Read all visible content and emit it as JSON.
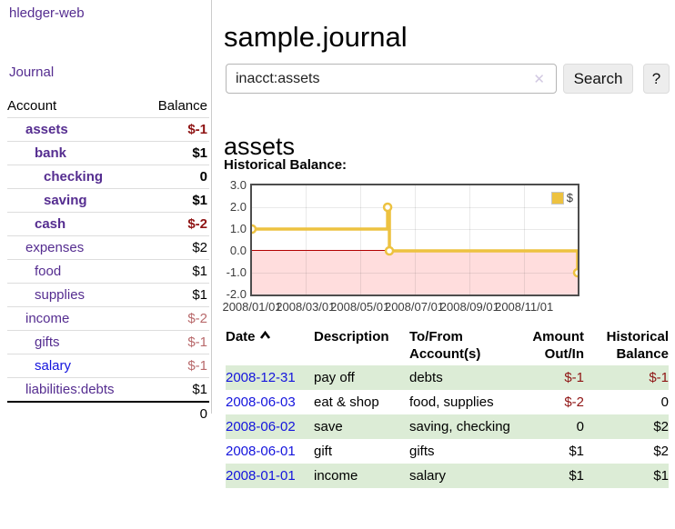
{
  "colors": {
    "link_purple": "#552d90",
    "link_blue": "#1414dd",
    "negative": "#8f1414",
    "negative_soft": "#b8696b",
    "row_highlight": "#dcecd6",
    "chart_line": "#edc240",
    "chart_negative_bg": "#ffdddd",
    "chart_zero_line": "#b30000"
  },
  "sidebar": {
    "app_title": "hledger-web",
    "journal_link": "Journal",
    "accounts": {
      "header_account": "Account",
      "header_balance": "Balance",
      "rows": [
        {
          "name": "assets",
          "indent": 1,
          "bold": true,
          "color": "purple",
          "balance": "$-1",
          "balance_color": "neg-strong",
          "balance_bold": true
        },
        {
          "name": "bank",
          "indent": 2,
          "bold": true,
          "color": "purple",
          "balance": "$1",
          "balance_color": "normal",
          "balance_bold": true
        },
        {
          "name": "checking",
          "indent": 3,
          "bold": true,
          "color": "purple",
          "balance": "0",
          "balance_color": "normal",
          "balance_bold": true
        },
        {
          "name": "saving",
          "indent": 3,
          "bold": true,
          "color": "purple",
          "balance": "$1",
          "balance_color": "normal",
          "balance_bold": true
        },
        {
          "name": "cash",
          "indent": 2,
          "bold": true,
          "color": "purple",
          "balance": "$-2",
          "balance_color": "neg-strong",
          "balance_bold": true
        },
        {
          "name": "expenses",
          "indent": 1,
          "bold": false,
          "color": "purple",
          "balance": "$2",
          "balance_color": "normal",
          "balance_bold": false
        },
        {
          "name": "food",
          "indent": 2,
          "bold": false,
          "color": "purple",
          "balance": "$1",
          "balance_color": "normal",
          "balance_bold": false
        },
        {
          "name": "supplies",
          "indent": 2,
          "bold": false,
          "color": "purple",
          "balance": "$1",
          "balance_color": "normal",
          "balance_bold": false
        },
        {
          "name": "income",
          "indent": 1,
          "bold": false,
          "color": "purple",
          "balance": "$-2",
          "balance_color": "neg-soft",
          "balance_bold": false
        },
        {
          "name": "gifts",
          "indent": 2,
          "bold": false,
          "color": "purple",
          "balance": "$-1",
          "balance_color": "neg-soft",
          "balance_bold": false
        },
        {
          "name": "salary",
          "indent": 2,
          "bold": false,
          "color": "blue",
          "balance": "$-1",
          "balance_color": "neg-soft",
          "balance_bold": false
        },
        {
          "name": "liabilities:debts",
          "indent": 1,
          "bold": false,
          "color": "purple",
          "balance": "$1",
          "balance_color": "normal",
          "balance_bold": false
        }
      ],
      "total": "0"
    }
  },
  "main": {
    "title": "sample.journal",
    "search": {
      "value": "inacct:assets",
      "clear_icon": "✕",
      "button": "Search",
      "help": "?"
    },
    "account_heading": "assets",
    "chart_title": "Historical Balance:"
  },
  "chart_data": {
    "type": "line",
    "style": "step",
    "title": "Historical Balance of assets",
    "series": [
      {
        "name": "$",
        "color": "#edc240",
        "points": [
          [
            "2008-01-01",
            1
          ],
          [
            "2008-06-01",
            2
          ],
          [
            "2008-06-03",
            0
          ],
          [
            "2008-12-31",
            -1
          ]
        ]
      }
    ],
    "x_range": [
      "2008-01-01",
      "2008-12-31"
    ],
    "ylim": [
      -2,
      3
    ],
    "x_ticks": [
      "2008/01/01",
      "2008/03/01",
      "2008/05/01",
      "2008/07/01",
      "2008/09/01",
      "2008/11/01"
    ],
    "y_ticks": [
      "3.0",
      "2.0",
      "1.0",
      "0.0",
      "-1.0",
      "-2.0"
    ],
    "grid": true,
    "legend": {
      "label": "$",
      "position": "top-right"
    },
    "negative_region_color": "#ffdddd",
    "zero_line_color": "#b30000"
  },
  "transactions": {
    "headers": {
      "date": "Date",
      "sort_icon": "chevron-up",
      "description": "Description",
      "tofrom": "To/From Account(s)",
      "amount": "Amount Out/In",
      "balance": "Historical Balance"
    },
    "rows": [
      {
        "date": "2008-12-31",
        "description": "pay off",
        "accounts": "debts",
        "amount": "$-1",
        "amount_neg": true,
        "balance": "$-1",
        "balance_neg": true,
        "highlight": true
      },
      {
        "date": "2008-06-03",
        "description": "eat & shop",
        "accounts": "food, supplies",
        "amount": "$-2",
        "amount_neg": true,
        "balance": "0",
        "balance_neg": false,
        "highlight": false
      },
      {
        "date": "2008-06-02",
        "description": "save",
        "accounts": "saving, checking",
        "amount": "0",
        "amount_neg": false,
        "balance": "$2",
        "balance_neg": false,
        "highlight": true
      },
      {
        "date": "2008-06-01",
        "description": "gift",
        "accounts": "gifts",
        "amount": "$1",
        "amount_neg": false,
        "balance": "$2",
        "balance_neg": false,
        "highlight": false
      },
      {
        "date": "2008-01-01",
        "description": "income",
        "accounts": "salary",
        "amount": "$1",
        "amount_neg": false,
        "balance": "$1",
        "balance_neg": false,
        "highlight": true
      }
    ]
  }
}
